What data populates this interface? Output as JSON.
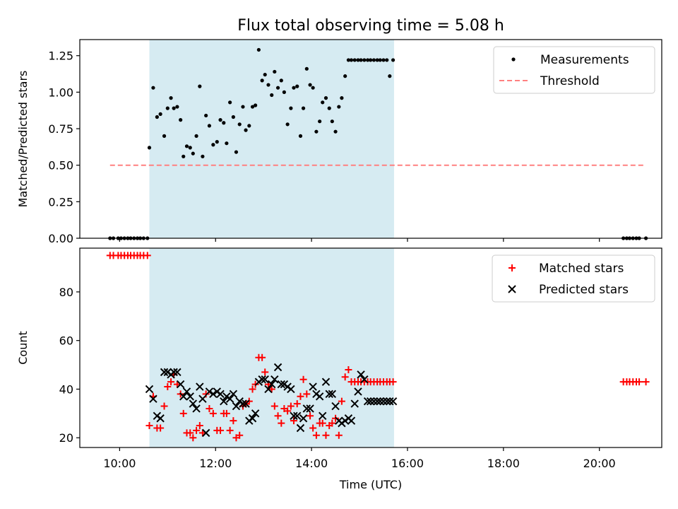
{
  "title": "Flux total observing time = 5.08 h",
  "colors": {
    "shade": "#add8e6",
    "measurement": "#000000",
    "threshold": "#ff8080",
    "matched": "#ff0000",
    "predicted": "#000000"
  },
  "chart_data": [
    {
      "type": "scatter",
      "ylabel": "Matched/Predicted stars",
      "xlim_hours": [
        9.17,
        21.3
      ],
      "ylim": [
        0,
        1.36
      ],
      "yticks": [
        "0.00",
        "0.25",
        "0.50",
        "0.75",
        "1.00",
        "1.25"
      ],
      "ytick_values": [
        0,
        0.25,
        0.5,
        0.75,
        1.0,
        1.25
      ],
      "shaded_span_hours": [
        10.62,
        15.72
      ],
      "legend": {
        "placement": "top-right",
        "entries": [
          "Measurements",
          "Threshold"
        ]
      },
      "threshold": {
        "name": "Threshold",
        "value": 0.5,
        "x_range_hours": [
          9.8,
          20.97
        ]
      },
      "series": [
        {
          "name": "Measurements",
          "x": [
            9.8,
            9.87,
            9.97,
            10.03,
            10.1,
            10.17,
            10.23,
            10.3,
            10.37,
            10.43,
            10.5,
            10.58,
            10.62,
            10.7,
            10.78,
            10.85,
            10.93,
            11.0,
            11.07,
            11.13,
            11.2,
            11.27,
            11.33,
            11.4,
            11.47,
            11.53,
            11.6,
            11.67,
            11.73,
            11.8,
            11.87,
            11.95,
            12.03,
            12.1,
            12.17,
            12.23,
            12.3,
            12.37,
            12.43,
            12.5,
            12.57,
            12.63,
            12.7,
            12.77,
            12.83,
            12.9,
            12.97,
            13.03,
            13.1,
            13.17,
            13.23,
            13.3,
            13.37,
            13.43,
            13.5,
            13.57,
            13.63,
            13.7,
            13.77,
            13.83,
            13.9,
            13.97,
            14.03,
            14.1,
            14.17,
            14.23,
            14.3,
            14.37,
            14.43,
            14.5,
            14.57,
            14.63,
            14.7,
            14.77,
            14.83,
            14.9,
            14.97,
            15.03,
            15.1,
            15.17,
            15.23,
            15.3,
            15.37,
            15.43,
            15.5,
            15.57,
            15.63,
            15.7,
            20.5,
            20.57,
            20.63,
            20.7,
            20.77,
            20.83,
            20.97
          ],
          "y": [
            0,
            0,
            0,
            0,
            0,
            0,
            0,
            0,
            0,
            0,
            0,
            0,
            0.62,
            1.03,
            0.83,
            0.85,
            0.7,
            0.89,
            0.96,
            0.89,
            0.9,
            0.81,
            0.56,
            0.63,
            0.62,
            0.58,
            0.7,
            1.04,
            0.56,
            0.84,
            0.77,
            0.64,
            0.66,
            0.81,
            0.79,
            0.65,
            0.93,
            0.83,
            0.59,
            0.78,
            0.9,
            0.74,
            0.77,
            0.9,
            0.91,
            1.29,
            1.08,
            1.12,
            1.05,
            0.98,
            1.14,
            1.03,
            1.08,
            1.0,
            0.78,
            0.89,
            1.03,
            1.04,
            0.7,
            0.89,
            1.16,
            1.05,
            1.03,
            0.73,
            0.8,
            0.93,
            0.96,
            0.89,
            0.8,
            0.73,
            0.9,
            0.96,
            1.11,
            1.22,
            1.22,
            1.22,
            1.22,
            1.22,
            1.22,
            1.22,
            1.22,
            1.22,
            1.22,
            1.22,
            1.22,
            1.22,
            1.11,
            1.22,
            0,
            0,
            0,
            0,
            0,
            0,
            0
          ]
        }
      ]
    },
    {
      "type": "scatter",
      "xlabel": "Time (UTC)",
      "ylabel": "Count",
      "xlim_hours": [
        9.17,
        21.3
      ],
      "ylim": [
        16,
        98
      ],
      "yticks": [
        "20",
        "40",
        "60",
        "80"
      ],
      "ytick_values": [
        20,
        40,
        60,
        80
      ],
      "xticks": [
        "10:00",
        "12:00",
        "14:00",
        "16:00",
        "18:00",
        "20:00"
      ],
      "xtick_hours": [
        10,
        12,
        14,
        16,
        18,
        20
      ],
      "shaded_span_hours": [
        10.62,
        15.72
      ],
      "legend": {
        "placement": "top-right",
        "entries": [
          "Matched stars",
          "Predicted stars"
        ]
      },
      "series": [
        {
          "name": "Matched stars",
          "x": [
            9.8,
            9.87,
            9.97,
            10.03,
            10.1,
            10.17,
            10.23,
            10.3,
            10.37,
            10.43,
            10.5,
            10.58,
            10.62,
            10.7,
            10.78,
            10.85,
            10.93,
            11.0,
            11.07,
            11.13,
            11.2,
            11.27,
            11.33,
            11.4,
            11.47,
            11.53,
            11.6,
            11.67,
            11.73,
            11.8,
            11.87,
            11.95,
            12.03,
            12.1,
            12.17,
            12.23,
            12.3,
            12.37,
            12.43,
            12.5,
            12.57,
            12.63,
            12.7,
            12.77,
            12.83,
            12.9,
            12.97,
            13.03,
            13.1,
            13.17,
            13.23,
            13.3,
            13.37,
            13.43,
            13.5,
            13.57,
            13.63,
            13.7,
            13.77,
            13.83,
            13.9,
            13.97,
            14.03,
            14.1,
            14.17,
            14.23,
            14.3,
            14.37,
            14.43,
            14.5,
            14.57,
            14.63,
            14.7,
            14.77,
            14.83,
            14.9,
            14.97,
            15.03,
            15.1,
            15.17,
            15.23,
            15.3,
            15.37,
            15.43,
            15.5,
            15.57,
            15.63,
            15.7,
            20.5,
            20.57,
            20.63,
            20.7,
            20.77,
            20.83,
            20.97
          ],
          "y": [
            95,
            95,
            95,
            95,
            95,
            95,
            95,
            95,
            95,
            95,
            95,
            95,
            25,
            37,
            24,
            24,
            33,
            41,
            43,
            46,
            42,
            38,
            30,
            22,
            22,
            20,
            23,
            25,
            22,
            38,
            32,
            30,
            23,
            23,
            30,
            30,
            23,
            27,
            20,
            21,
            33,
            34,
            35,
            40,
            42,
            53,
            53,
            47,
            42,
            40,
            33,
            29,
            26,
            32,
            31,
            33,
            27,
            34,
            37,
            44,
            38,
            29,
            24,
            21,
            26,
            26,
            21,
            25,
            26,
            28,
            21,
            35,
            45,
            48,
            43,
            43,
            43,
            43,
            43,
            43,
            43,
            43,
            43,
            43,
            43,
            43,
            43,
            43,
            43,
            43,
            43,
            43,
            43,
            43,
            43
          ]
        },
        {
          "name": "Predicted stars",
          "x": [
            10.62,
            10.7,
            10.78,
            10.85,
            10.93,
            11.0,
            11.07,
            11.13,
            11.2,
            11.27,
            11.33,
            11.4,
            11.47,
            11.53,
            11.6,
            11.67,
            11.73,
            11.8,
            11.87,
            11.95,
            12.03,
            12.1,
            12.17,
            12.23,
            12.3,
            12.37,
            12.43,
            12.5,
            12.57,
            12.63,
            12.7,
            12.77,
            12.83,
            12.9,
            12.97,
            13.03,
            13.1,
            13.17,
            13.23,
            13.3,
            13.37,
            13.43,
            13.5,
            13.57,
            13.63,
            13.7,
            13.77,
            13.83,
            13.9,
            13.97,
            14.03,
            14.1,
            14.17,
            14.23,
            14.3,
            14.37,
            14.43,
            14.5,
            14.57,
            14.63,
            14.7,
            14.77,
            14.83,
            14.9,
            14.97,
            15.03,
            15.1,
            15.17,
            15.23,
            15.3,
            15.37,
            15.43,
            15.5,
            15.57,
            15.63,
            15.7
          ],
          "y": [
            40,
            36,
            29,
            28,
            47,
            47,
            46,
            47,
            47,
            42,
            37,
            39,
            37,
            34,
            32,
            41,
            36,
            22,
            39,
            38,
            39,
            38,
            35,
            37,
            36,
            38,
            33,
            35,
            34,
            34,
            27,
            28,
            30,
            43,
            44,
            44,
            40,
            42,
            44,
            49,
            42,
            42,
            41,
            40,
            29,
            29,
            24,
            28,
            32,
            32,
            41,
            38,
            37,
            29,
            43,
            38,
            38,
            33,
            27,
            26,
            27,
            28,
            27,
            34,
            39,
            46,
            44,
            35,
            35,
            35,
            35,
            35,
            35,
            35,
            35,
            35
          ]
        }
      ]
    }
  ]
}
